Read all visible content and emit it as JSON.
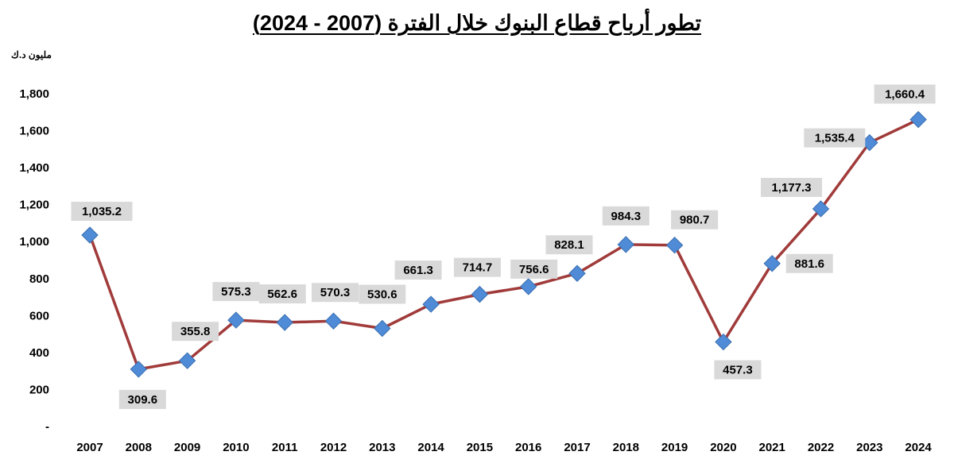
{
  "chart_data": {
    "type": "line",
    "title": "تطور أرباح قطاع البنوك خلال الفترة (2007 - 2024)",
    "ylabel": "مليون د.ك",
    "categories": [
      "2007",
      "2008",
      "2009",
      "2010",
      "2011",
      "2012",
      "2013",
      "2014",
      "2015",
      "2016",
      "2017",
      "2018",
      "2019",
      "2020",
      "2021",
      "2022",
      "2023",
      "2024"
    ],
    "values": [
      1035.2,
      309.6,
      355.8,
      575.3,
      562.6,
      570.3,
      530.6,
      661.3,
      714.7,
      756.6,
      828.1,
      984.3,
      980.7,
      457.3,
      881.6,
      1177.3,
      1535.4,
      1660.4
    ],
    "data_labels": [
      "1,035.2",
      "309.6",
      "355.8",
      "575.3",
      "562.6",
      "570.3",
      "530.6",
      "661.3",
      "714.7",
      "756.6",
      "828.1",
      "984.3",
      "980.7",
      "457.3",
      "881.6",
      "1,177.3",
      "1,535.4",
      "1,660.4"
    ],
    "ylim": [
      0,
      1800
    ],
    "yticks": [
      0,
      200,
      400,
      600,
      800,
      1000,
      1200,
      1400,
      1600,
      1800
    ],
    "ytick_labels": [
      "-",
      "200",
      "400",
      "600",
      "800",
      "1,000",
      "1,200",
      "1,400",
      "1,600",
      "1,800"
    ],
    "grid": false,
    "colors": {
      "line": "#A03B3A",
      "marker": "#4F8BD6",
      "marker_stroke": "#3A6FB0",
      "label_bg": "#D9D9D9"
    }
  }
}
